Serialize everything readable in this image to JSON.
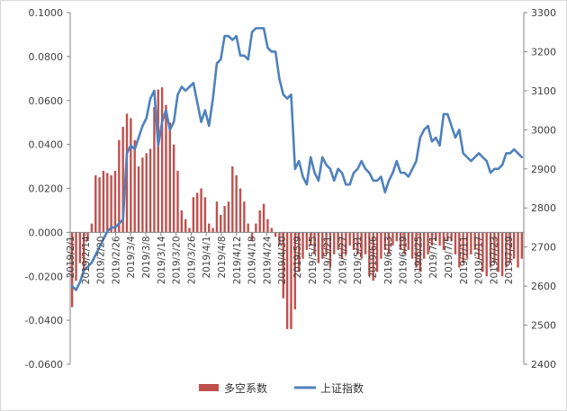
{
  "chart_data": {
    "type": "bar+line",
    "title": "",
    "legend_placement": "bottom",
    "grid": false,
    "colors": {
      "bar": "#C0504D",
      "line": "#4F81BD",
      "axis": "#868686"
    },
    "y_left": {
      "range": [
        -0.06,
        0.1
      ],
      "ticks": [
        "-0.0600",
        "-0.0400",
        "-0.0200",
        "0.0000",
        "0.0200",
        "0.0400",
        "0.0600",
        "0.0800",
        "0.1000"
      ]
    },
    "y_right": {
      "range": [
        2400,
        3300
      ],
      "ticks": [
        "2400",
        "2500",
        "2600",
        "2700",
        "2800",
        "2900",
        "3000",
        "3100",
        "3200",
        "3300"
      ]
    },
    "x_ticks": [
      "2019/2/1",
      "2019/2/14",
      "2019/2/20",
      "2019/2/26",
      "2019/3/4",
      "2019/3/8",
      "2019/3/14",
      "2019/3/20",
      "2019/3/26",
      "2019/4/1",
      "2019/4/8",
      "2019/4/12",
      "2019/4/18",
      "2019/4/24",
      "2019/4/30",
      "2019/5/9",
      "2019/5/15",
      "2019/5/21",
      "2019/5/27",
      "2019/5/31",
      "2019/6/6",
      "2019/6/13",
      "2019/6/19",
      "2019/6/25",
      "2019/7/1",
      "2019/7/5",
      "2019/7/11",
      "2019/7/17",
      "2019/7/23",
      "2019/7/29"
    ],
    "series": [
      {
        "name": "多空系数",
        "kind": "bar",
        "values": [
          -0.034,
          -0.022,
          -0.014,
          -0.018,
          -0.004,
          0.004,
          0.026,
          0.025,
          0.028,
          0.027,
          0.026,
          0.028,
          0.042,
          0.048,
          0.054,
          0.052,
          0.042,
          0.03,
          0.034,
          0.036,
          0.038,
          0.057,
          0.065,
          0.066,
          0.058,
          0.05,
          0.04,
          0.028,
          0.01,
          0.006,
          0.002,
          0.016,
          0.018,
          0.02,
          0.016,
          0.004,
          0.002,
          0.014,
          0.008,
          0.012,
          0.014,
          0.03,
          0.026,
          0.02,
          0.014,
          0.004,
          -0.004,
          0.004,
          0.01,
          0.013,
          0.006,
          0.002,
          -0.002,
          -0.006,
          -0.03,
          -0.044,
          -0.044,
          -0.035,
          -0.018,
          -0.012,
          -0.008,
          -0.006,
          -0.01,
          -0.014,
          -0.012,
          -0.01,
          -0.016,
          -0.01,
          -0.008,
          -0.012,
          -0.01,
          -0.006,
          -0.008,
          -0.01,
          -0.012,
          -0.01,
          -0.02,
          -0.022,
          -0.018,
          -0.012,
          -0.008,
          -0.01,
          -0.006,
          -0.004,
          -0.008,
          -0.01,
          -0.008,
          -0.012,
          -0.016,
          -0.018,
          -0.012,
          -0.01,
          -0.006,
          -0.004,
          -0.006,
          -0.008,
          -0.004,
          -0.004,
          -0.01,
          -0.016,
          -0.014,
          -0.012,
          -0.01,
          -0.008,
          -0.012,
          -0.018,
          -0.02,
          -0.016,
          -0.014,
          -0.018,
          -0.02,
          -0.016,
          -0.014,
          -0.012,
          -0.016,
          -0.012
        ]
      },
      {
        "name": "上证指数",
        "kind": "line",
        "values": [
          2600,
          2590,
          2610,
          2640,
          2650,
          2660,
          2680,
          2700,
          2720,
          2740,
          2750,
          2750,
          2760,
          2770,
          2940,
          2960,
          2950,
          2980,
          3010,
          3030,
          3080,
          3100,
          2960,
          3020,
          3050,
          3000,
          3020,
          3090,
          3110,
          3100,
          3110,
          3120,
          3070,
          3020,
          3050,
          3010,
          3080,
          3170,
          3180,
          3240,
          3240,
          3230,
          3240,
          3190,
          3190,
          3180,
          3250,
          3260,
          3260,
          3260,
          3210,
          3200,
          3200,
          3130,
          3090,
          3080,
          3090,
          2900,
          2920,
          2880,
          2860,
          2930,
          2890,
          2870,
          2930,
          2910,
          2900,
          2870,
          2900,
          2890,
          2860,
          2860,
          2890,
          2900,
          2920,
          2900,
          2890,
          2870,
          2870,
          2880,
          2840,
          2870,
          2890,
          2920,
          2890,
          2890,
          2880,
          2900,
          2920,
          2980,
          3000,
          3010,
          2970,
          2980,
          2960,
          3040,
          3040,
          3010,
          2980,
          3000,
          2940,
          2930,
          2920,
          2930,
          2940,
          2930,
          2920,
          2890,
          2900,
          2900,
          2910,
          2940,
          2940,
          2950,
          2940,
          2930
        ]
      }
    ]
  }
}
